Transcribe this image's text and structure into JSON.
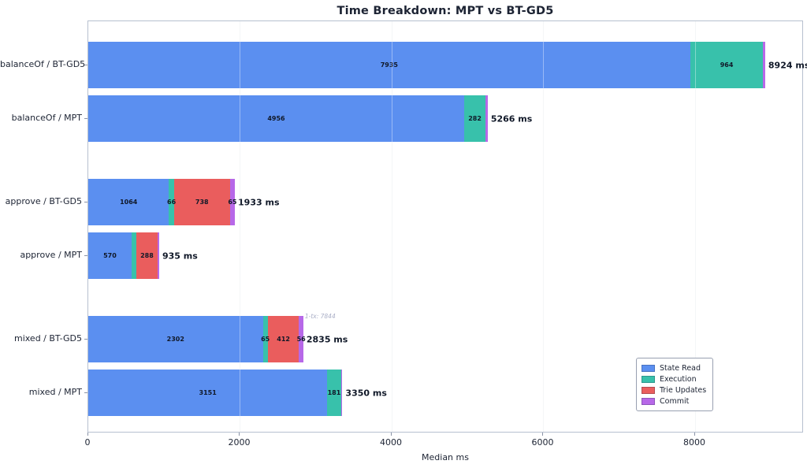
{
  "figure": {
    "title": "Time Breakdown: MPT vs BT-GD5",
    "xlabel": "Median ms"
  },
  "chart_data": {
    "type": "bar",
    "orientation": "horizontal",
    "stacked": true,
    "title": "Time Breakdown: MPT vs BT-GD5",
    "xlabel": "Median ms",
    "ylabel": "",
    "xlim": [
      0,
      9434
    ],
    "x_ticks": [
      0,
      2000,
      4000,
      6000,
      8000
    ],
    "grid": "vertical",
    "legend_position": "lower-right",
    "series": [
      {
        "name": "State Read",
        "color": "#5b8ff0"
      },
      {
        "name": "Execution",
        "color": "#38c1ab"
      },
      {
        "name": "Trie Updates",
        "color": "#ea5d5d"
      },
      {
        "name": "Commit",
        "color": "#b768e8"
      }
    ],
    "rows": [
      {
        "category": "balanceOf / BT-GD5",
        "group": 0,
        "total": 8924,
        "total_label": "8924 ms",
        "annotation": "",
        "segments": [
          {
            "series": "State Read",
            "value": 7935,
            "label": "7935"
          },
          {
            "series": "Execution",
            "value": 964,
            "label": "964"
          },
          {
            "series": "Commit",
            "value": 25,
            "label": ""
          }
        ]
      },
      {
        "category": "balanceOf / MPT",
        "group": 0,
        "total": 5266,
        "total_label": "5266 ms",
        "annotation": "",
        "segments": [
          {
            "series": "State Read",
            "value": 4956,
            "label": "4956"
          },
          {
            "series": "Execution",
            "value": 282,
            "label": "282"
          },
          {
            "series": "Commit",
            "value": 28,
            "label": ""
          }
        ]
      },
      {
        "category": "approve / BT-GD5",
        "group": 1,
        "total": 1933,
        "total_label": "1933 ms",
        "annotation": "",
        "segments": [
          {
            "series": "State Read",
            "value": 1064,
            "label": "1064"
          },
          {
            "series": "Execution",
            "value": 66,
            "label": "66"
          },
          {
            "series": "Trie Updates",
            "value": 738,
            "label": "738"
          },
          {
            "series": "Commit",
            "value": 65,
            "label": "65"
          }
        ]
      },
      {
        "category": "approve / MPT",
        "group": 1,
        "total": 935,
        "total_label": "935 ms",
        "annotation": "",
        "segments": [
          {
            "series": "State Read",
            "value": 570,
            "label": "570"
          },
          {
            "series": "Execution",
            "value": 60,
            "label": ""
          },
          {
            "series": "Trie Updates",
            "value": 288,
            "label": "288"
          },
          {
            "series": "Commit",
            "value": 17,
            "label": ""
          }
        ]
      },
      {
        "category": "mixed / BT-GD5",
        "group": 2,
        "total": 2835,
        "total_label": "2835 ms",
        "annotation": "1-tx: 7844",
        "segments": [
          {
            "series": "State Read",
            "value": 2302,
            "label": "2302"
          },
          {
            "series": "Execution",
            "value": 65,
            "label": "65"
          },
          {
            "series": "Trie Updates",
            "value": 412,
            "label": "412"
          },
          {
            "series": "Commit",
            "value": 56,
            "label": "56"
          }
        ]
      },
      {
        "category": "mixed / MPT",
        "group": 2,
        "total": 3350,
        "total_label": "3350 ms",
        "annotation": "",
        "segments": [
          {
            "series": "State Read",
            "value": 3151,
            "label": "3151"
          },
          {
            "series": "Execution",
            "value": 181,
            "label": "181"
          },
          {
            "series": "Commit",
            "value": 18,
            "label": ""
          }
        ]
      }
    ]
  },
  "colors": {
    "state_read": "#5b8ff0",
    "execution": "#38c1ab",
    "trie_updates": "#ea5d5d",
    "commit": "#b768e8",
    "text": "#1c2333",
    "annotation": "#a9aec6",
    "spine": "#b7c0cf",
    "gridline": "#eef0f3"
  }
}
